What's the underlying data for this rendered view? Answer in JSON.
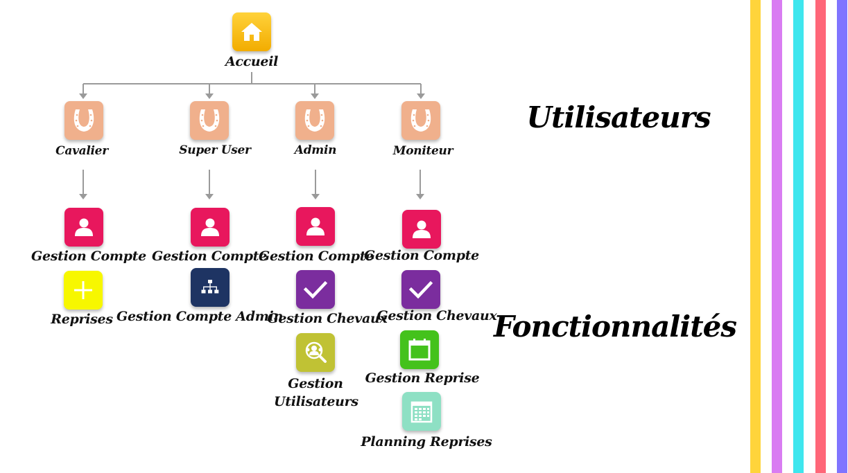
{
  "root": {
    "label": "Accueil",
    "icon": "home-icon",
    "color": "#f5b800"
  },
  "roles": [
    {
      "id": "cavalier",
      "label": "Cavalier",
      "features": [
        {
          "label": "Gestion Compte",
          "icon": "user-icon",
          "color": "#e8175d"
        },
        {
          "label": "Reprises",
          "icon": "plus-icon",
          "color": "#f7f700"
        }
      ]
    },
    {
      "id": "super-user",
      "label": "Super User",
      "features": [
        {
          "label": "Gestion Compte",
          "icon": "user-icon",
          "color": "#e8175d"
        },
        {
          "label": "Gestion Compte Admin",
          "icon": "org-chart-icon",
          "color": "#1e3463"
        }
      ]
    },
    {
      "id": "admin",
      "label": "Admin",
      "features": [
        {
          "label": "Gestion Compte",
          "icon": "user-icon",
          "color": "#e8175d"
        },
        {
          "label": "Gestion Chevaux",
          "icon": "checkmark-icon",
          "color": "#7b2d9e"
        },
        {
          "label": "Gestion Utilisateurs",
          "icon": "user-search-icon",
          "color": "#c0c234"
        }
      ]
    },
    {
      "id": "moniteur",
      "label": "Moniteur",
      "features": [
        {
          "label": "Gestion Compte",
          "icon": "user-icon",
          "color": "#e8175d"
        },
        {
          "label": "Gestion Chevaux",
          "icon": "checkmark-icon",
          "color": "#7b2d9e"
        },
        {
          "label": "Gestion Reprise",
          "icon": "calendar-icon",
          "color": "#44c21c"
        },
        {
          "label": "Planning Reprises",
          "icon": "calendar-grid-icon",
          "color": "#8ee0c4"
        }
      ]
    }
  ],
  "headings": {
    "users": "Utilisateurs",
    "features": "Fonctionnalités"
  },
  "role_tile_color": "#f0b08c",
  "connector_color": "#9a9a9a",
  "stripes": [
    "#ffd43b",
    "#d97cf2",
    "#3ee6ee",
    "#ff6678",
    "#7f74ff"
  ]
}
